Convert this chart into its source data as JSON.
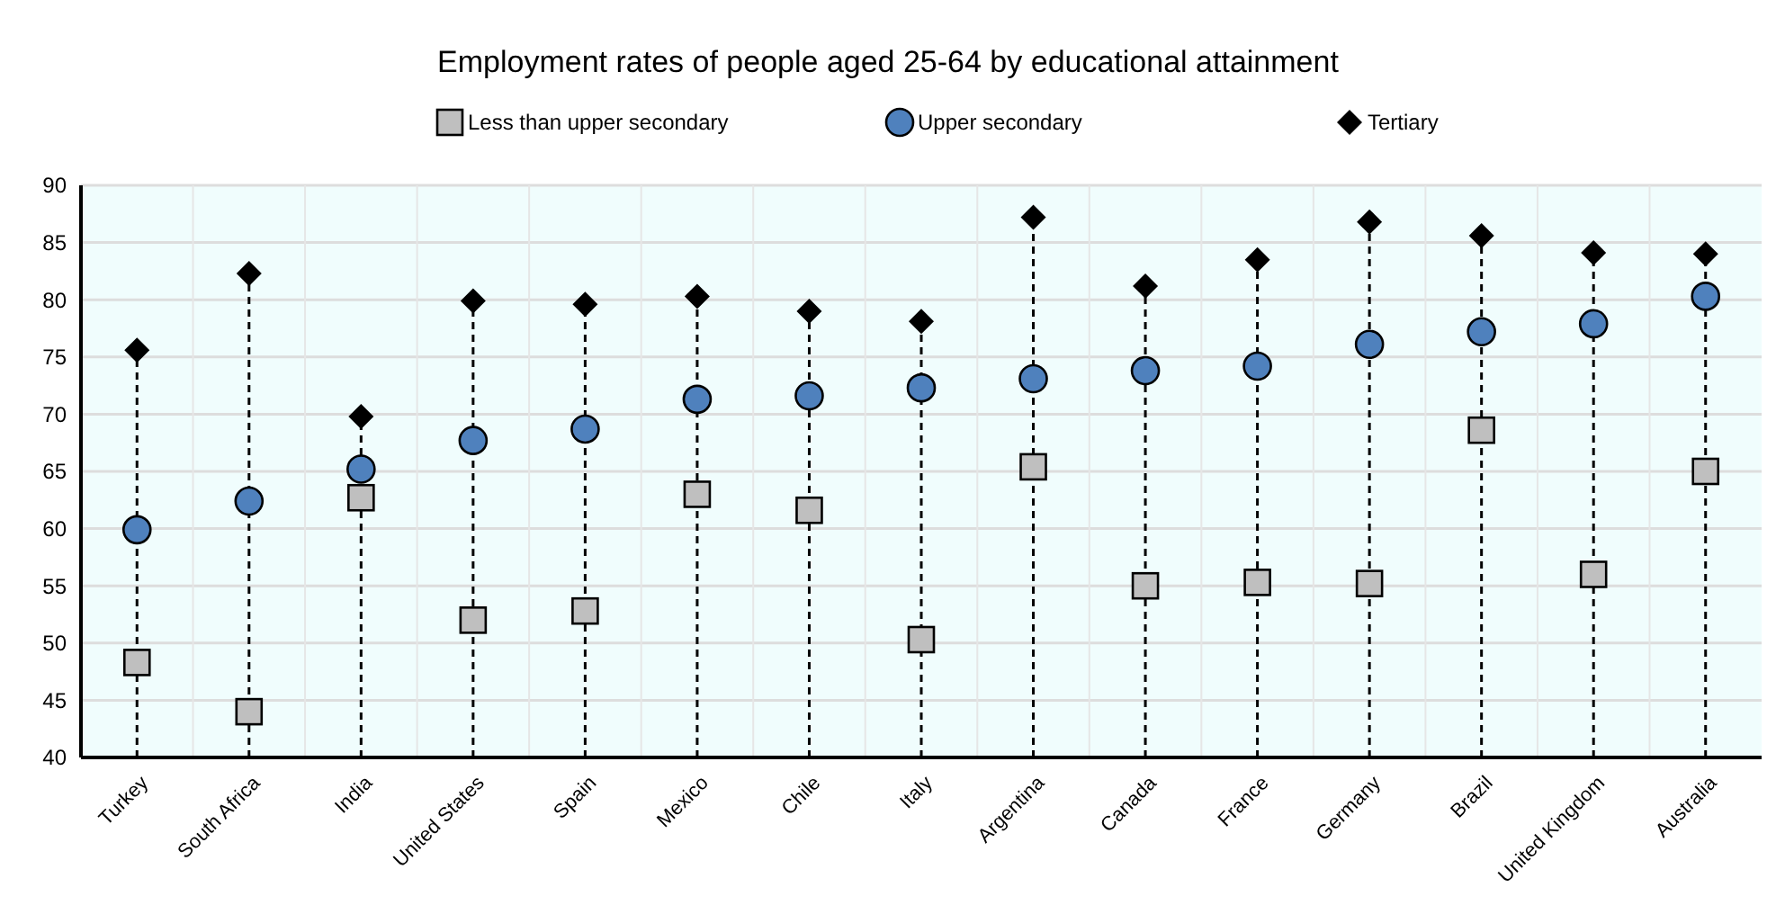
{
  "chart_data": {
    "type": "scatter",
    "title": "Employment rates of people aged 25-64 by educational attainment",
    "categories": [
      "Turkey",
      "South Africa",
      "India",
      "United States",
      "Spain",
      "Mexico",
      "Chile",
      "Italy",
      "Argentina",
      "Canada",
      "France",
      "Germany",
      "Brazil",
      "United Kingdom",
      "Australia"
    ],
    "series": [
      {
        "name": "Less than upper secondary",
        "color": "#bfbfbf",
        "marker": "square",
        "values": [
          48.3,
          44,
          62.7,
          52,
          52.8,
          63,
          61.6,
          50.3,
          65.4,
          55,
          55.3,
          55.2,
          68.6,
          56,
          65
        ]
      },
      {
        "name": "Upper secondary",
        "color": "#4f81bd",
        "marker": "circle",
        "values": [
          59.9,
          62.4,
          65.2,
          67.7,
          68.7,
          71.3,
          71.6,
          72.3,
          73.1,
          73.8,
          74.2,
          76.1,
          77.2,
          77.9,
          80.3
        ]
      },
      {
        "name": "Tertiary",
        "type": "lollipop",
        "color": "#000000",
        "marker": "diamond",
        "line_style": "dashed",
        "values": [
          75.6,
          82.3,
          69.8,
          79.9,
          79.6,
          80.3,
          79,
          78.1,
          87.2,
          81.2,
          83.5,
          86.8,
          85.6,
          84.1,
          84
        ]
      }
    ],
    "ylim": [
      40,
      90
    ],
    "yticks": [
      40,
      45,
      50,
      55,
      60,
      65,
      70,
      75,
      80,
      85,
      90
    ],
    "grid": true,
    "legend": "top"
  }
}
